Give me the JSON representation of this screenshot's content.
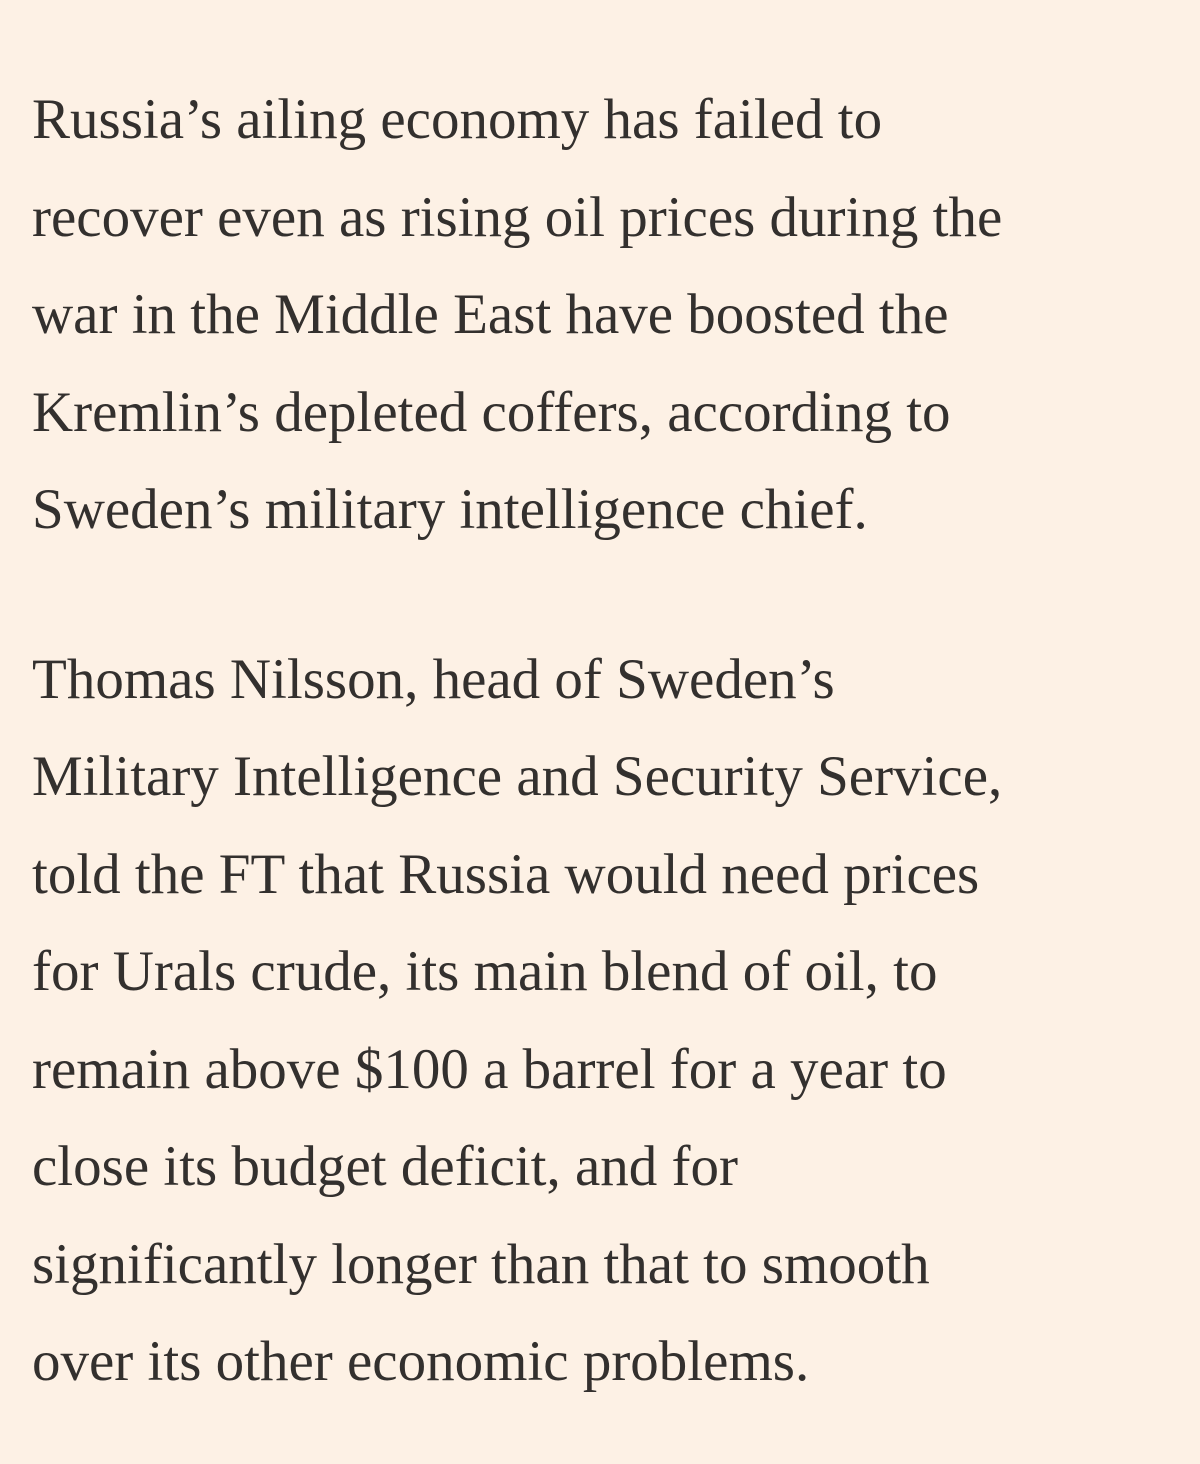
{
  "article": {
    "paragraphs": [
      {
        "lines": [
          "Russia’s ailing economy has failed to",
          "recover even as rising oil prices during the",
          "war in the Middle East have boosted the",
          "Kremlin’s depleted coffers, according to",
          "Sweden’s military intelligence chief."
        ]
      },
      {
        "lines": [
          "Thomas Nilsson, head of Sweden’s",
          "Military Intelligence and Security Service,",
          "told the FT that Russia would need prices",
          "for Urals crude, its main blend of oil, to",
          "remain above $100 a barrel for a year to",
          "close its budget deficit, and for",
          "significantly longer than that to smooth",
          "over its other economic problems."
        ]
      }
    ]
  }
}
